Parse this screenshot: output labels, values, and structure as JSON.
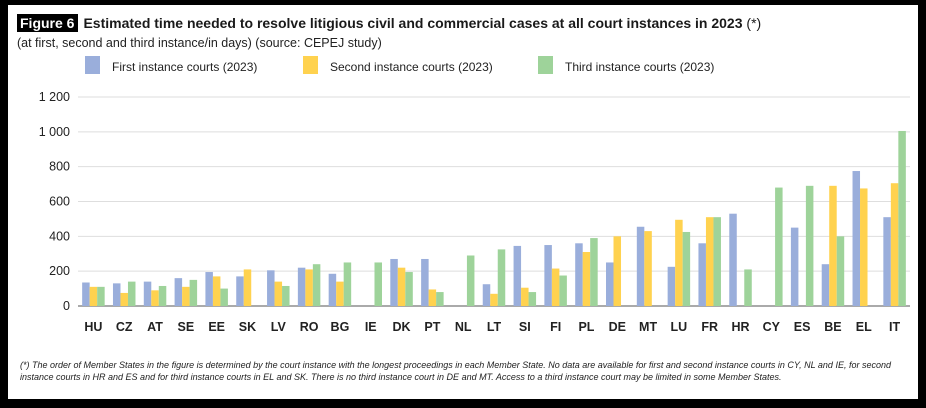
{
  "figure_label": "Figure 6",
  "title": "Estimated time needed to resolve litigious civil and commercial cases at all court instances in 2023",
  "title_note": "(*)",
  "subtitle": "(at first, second and third instance/in days) (source: CEPEJ study)",
  "footnote": "(*) The order of Member States in the figure is determined by the court instance with the longest proceedings in each Member State. No data are available for first and second instance courts in CY, NL and IE, for second instance courts in HR and ES and for third instance courts in EL and SK. There is no third instance court in DE and MT. Access to a third instance court may be limited in some Member States.",
  "colors": {
    "first": "#9aaedb",
    "second": "#ffd24f",
    "third": "#9ed39a"
  },
  "chart_data": {
    "type": "bar",
    "categories": [
      "HU",
      "CZ",
      "AT",
      "SE",
      "EE",
      "SK",
      "LV",
      "RO",
      "BG",
      "IE",
      "DK",
      "PT",
      "NL",
      "LT",
      "SI",
      "FI",
      "PL",
      "DE",
      "MT",
      "LU",
      "FR",
      "HR",
      "CY",
      "ES",
      "BE",
      "EL",
      "IT"
    ],
    "series": [
      {
        "name": "First instance courts (2023)",
        "color": "#9aaedb",
        "values": [
          135,
          130,
          140,
          160,
          195,
          170,
          205,
          220,
          185,
          null,
          270,
          270,
          null,
          125,
          345,
          350,
          360,
          250,
          455,
          225,
          360,
          530,
          null,
          450,
          240,
          775,
          510
        ]
      },
      {
        "name": "Second instance courts (2023)",
        "color": "#ffd24f",
        "values": [
          110,
          75,
          90,
          110,
          170,
          210,
          140,
          210,
          140,
          null,
          220,
          95,
          null,
          70,
          105,
          215,
          310,
          400,
          430,
          495,
          510,
          null,
          null,
          null,
          690,
          675,
          705
        ]
      },
      {
        "name": "Third instance courts (2023)",
        "color": "#9ed39a",
        "values": [
          110,
          140,
          115,
          150,
          100,
          null,
          115,
          240,
          250,
          250,
          195,
          80,
          290,
          325,
          80,
          175,
          390,
          null,
          null,
          425,
          510,
          210,
          680,
          690,
          400,
          null,
          1005
        ]
      }
    ],
    "yticks": [
      "0",
      "200",
      "400",
      "600",
      "800",
      "1 000",
      "1 200"
    ],
    "ylim": [
      0,
      1200
    ],
    "xlabel": "",
    "ylabel": "",
    "grid": true,
    "legend_position": "top-left"
  }
}
